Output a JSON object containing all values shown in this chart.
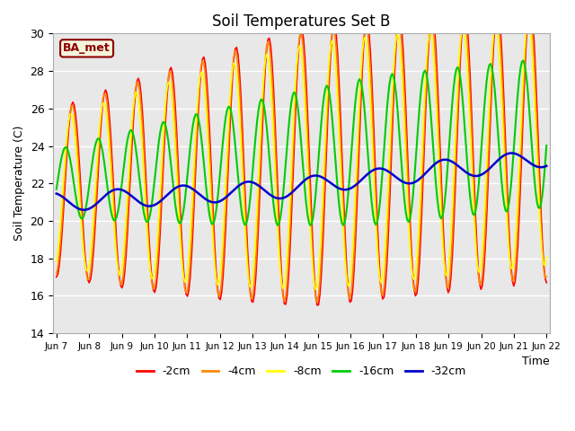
{
  "title": "Soil Temperatures Set B",
  "xlabel": "Time",
  "ylabel": "Soil Temperature (C)",
  "ylim": [
    14,
    30
  ],
  "plot_bg_color": "#e8e8e8",
  "annotation": "BA_met",
  "annotation_color": "#8b0000",
  "annotation_bg": "#f5f5dc",
  "lines": {
    "-2cm": {
      "color": "#ff0000",
      "lw": 1.2
    },
    "-4cm": {
      "color": "#ff8800",
      "lw": 1.2
    },
    "-8cm": {
      "color": "#ffff00",
      "lw": 1.2
    },
    "-16cm": {
      "color": "#00cc00",
      "lw": 1.5
    },
    "-32cm": {
      "color": "#0000cc",
      "lw": 1.8
    }
  },
  "x_tick_labels": [
    "Jun 7",
    "Jun 8",
    "Jun 9",
    "Jun 10",
    "Jun 11",
    "Jun 12",
    "Jun 13",
    "Jun 14",
    "Jun 15",
    "Jun 16",
    "Jun 17",
    "Jun 18",
    "Jun 19",
    "Jun 20",
    "Jun 21",
    "Jun 22"
  ],
  "yticks": [
    14,
    16,
    18,
    20,
    22,
    24,
    26,
    28,
    30
  ]
}
